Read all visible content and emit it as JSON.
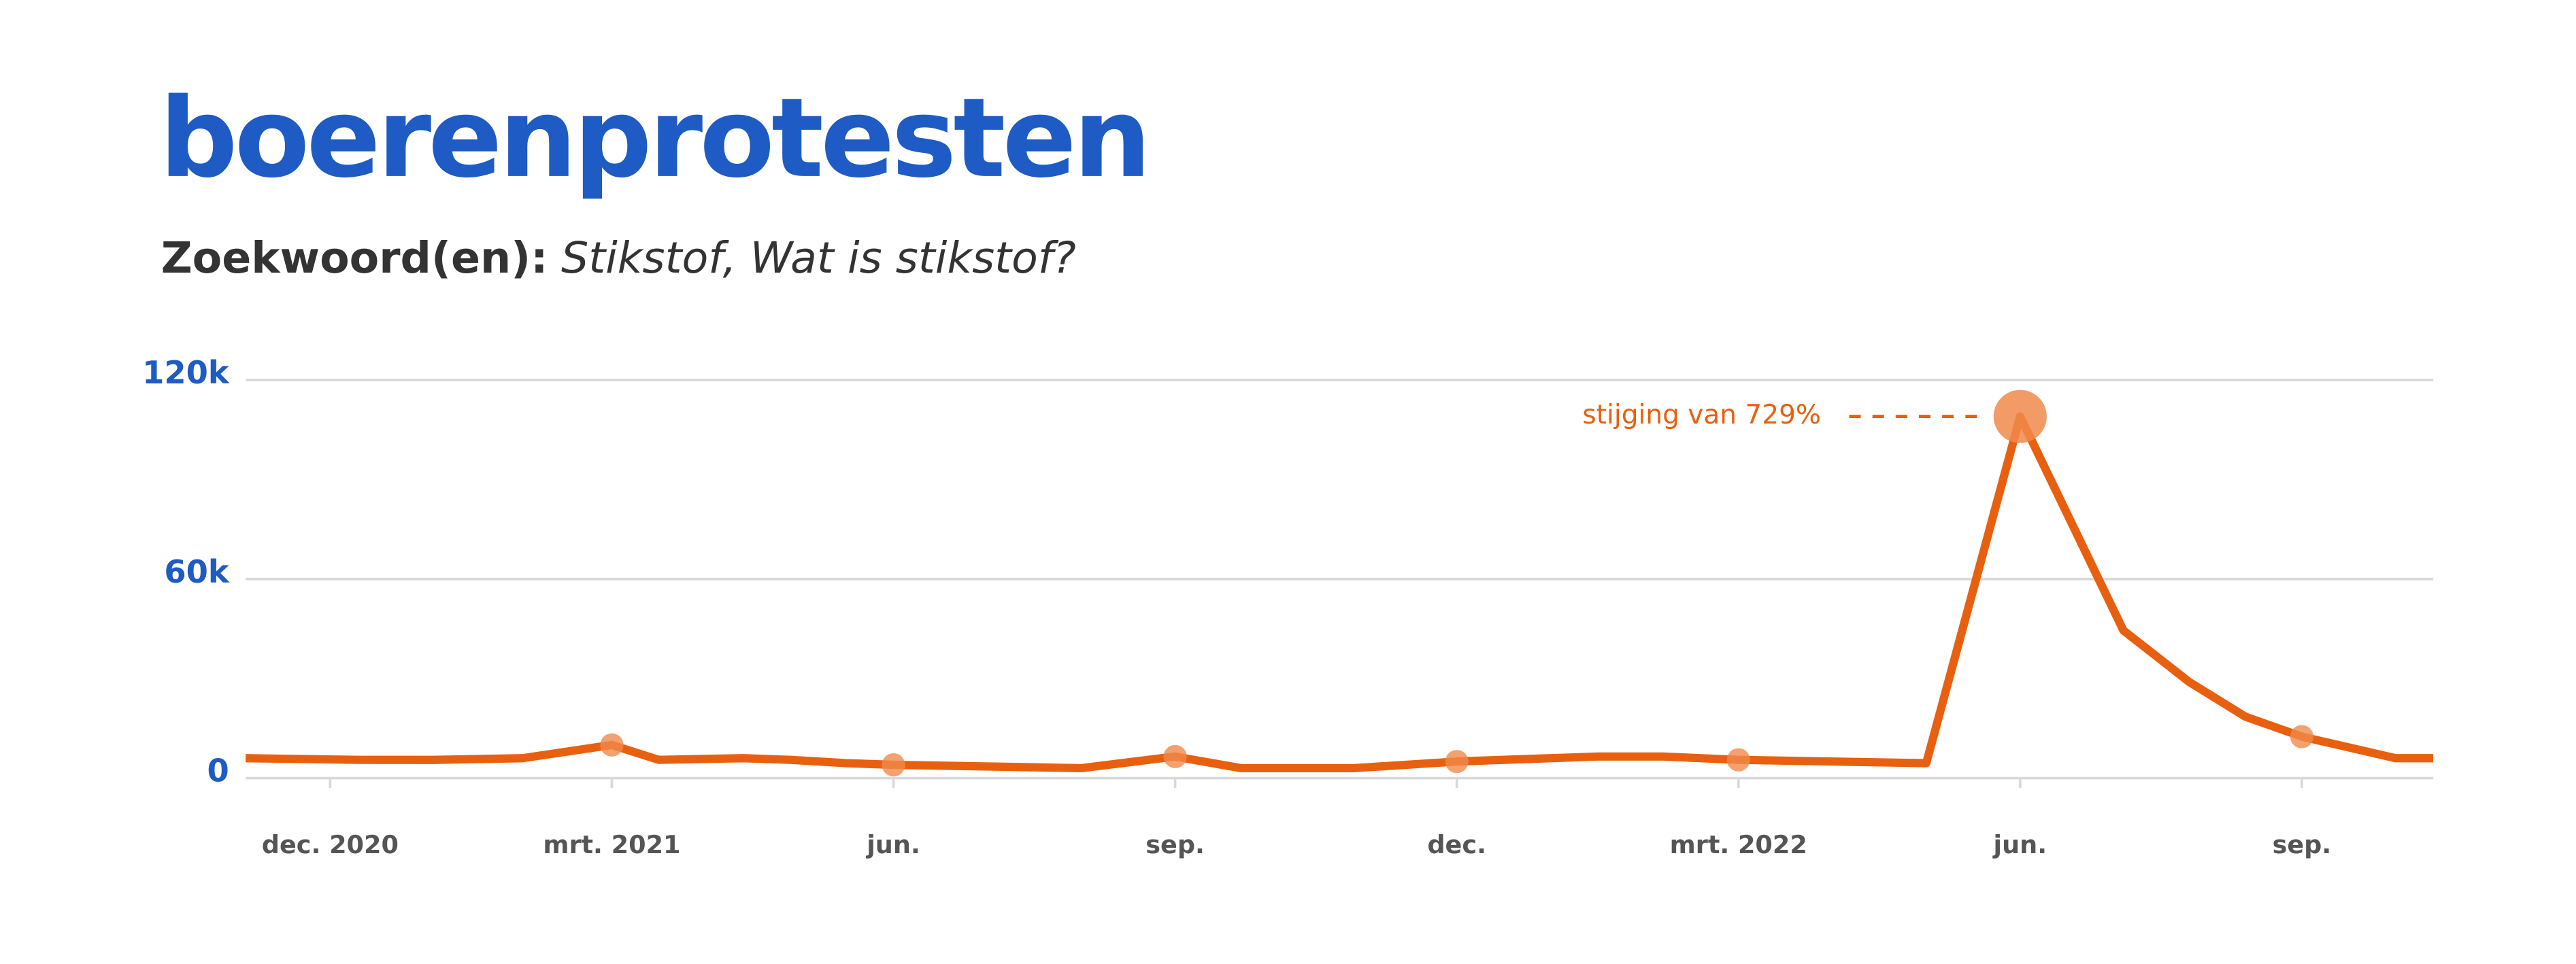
{
  "chart_data": {
    "type": "line",
    "title": "boerenprotesten",
    "subtitle_label": "Zoekwoord(en):",
    "subtitle_text": "Stikstof, Wat is stikstof?",
    "x": [
      -0.9,
      0.3,
      1.1,
      2.05,
      3,
      3.5,
      4.4,
      4.9,
      5.5,
      6,
      8,
      9,
      9.7,
      10.9,
      12,
      13.5,
      14.2,
      15,
      17,
      18,
      19.1,
      19.8,
      20.4,
      21,
      22,
      22.4
    ],
    "values": [
      6000,
      5500,
      5500,
      6000,
      10000,
      5500,
      6000,
      5500,
      4500,
      4000,
      3000,
      6500,
      3000,
      3000,
      5000,
      6500,
      6500,
      5500,
      4500,
      109000,
      44500,
      29000,
      18500,
      12500,
      6000,
      6000
    ],
    "color": "#e8600f",
    "marker_color": "#f08a4b",
    "xlim": [
      -0.9,
      22.4
    ],
    "xticks": [
      {
        "value": 0,
        "label": "dec. 2020"
      },
      {
        "value": 3,
        "label": "mrt. 2021"
      },
      {
        "value": 6,
        "label": "jun."
      },
      {
        "value": 9,
        "label": "sep."
      },
      {
        "value": 12,
        "label": "dec."
      },
      {
        "value": 15,
        "label": "mrt. 2022"
      },
      {
        "value": 18,
        "label": "jun."
      },
      {
        "value": 21,
        "label": "sep."
      }
    ],
    "ylim": [
      0,
      120000
    ],
    "yticks": [
      {
        "value": 0,
        "label": "0"
      },
      {
        "value": 60000,
        "label": "60k"
      },
      {
        "value": 120000,
        "label": "120k"
      }
    ],
    "grid": true,
    "annotation": "stijging van 729%"
  }
}
